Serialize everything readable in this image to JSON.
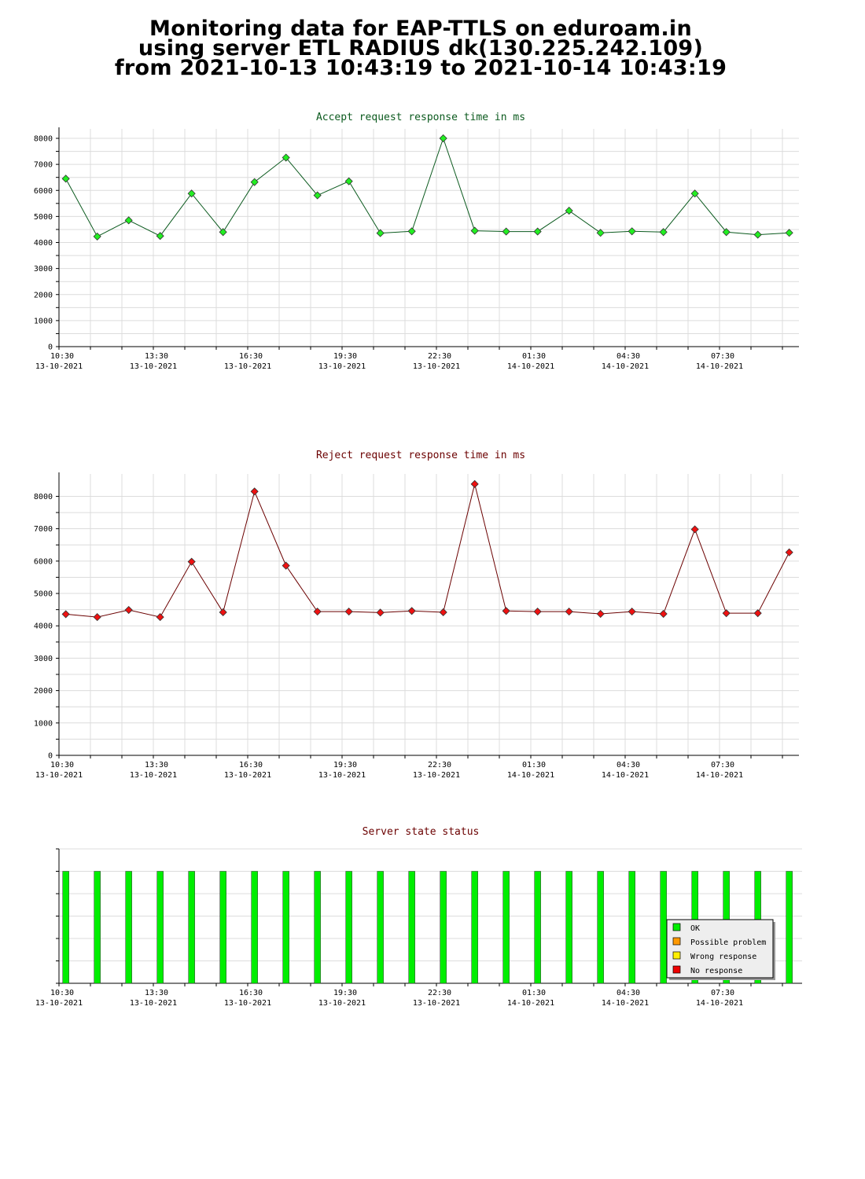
{
  "header": {
    "line1": "Monitoring data for EAP-TTLS on eduroam.in",
    "line2": "using server ETL RADIUS dk(130.225.242.109)",
    "line3": "from 2021-10-13 10:43:19 to 2021-10-14 10:43:19"
  },
  "colors": {
    "accept_line": "#0b5a1e",
    "accept_marker": "#22ee22",
    "reject_line": "#6b0000",
    "reject_marker": "#ee1111",
    "ok": "#00ee00",
    "possible_problem": "#ff9900",
    "wrong_response": "#ffee00",
    "no_response": "#ee0000",
    "grid": "#dcdcdc"
  },
  "x_axis": {
    "ticks": [
      {
        "time": "10:30",
        "date": "13-10-2021"
      },
      {
        "time": "13:30",
        "date": "13-10-2021"
      },
      {
        "time": "16:30",
        "date": "13-10-2021"
      },
      {
        "time": "19:30",
        "date": "13-10-2021"
      },
      {
        "time": "22:30",
        "date": "13-10-2021"
      },
      {
        "time": "01:30",
        "date": "14-10-2021"
      },
      {
        "time": "04:30",
        "date": "14-10-2021"
      },
      {
        "time": "07:30",
        "date": "14-10-2021"
      }
    ]
  },
  "chart_data": [
    {
      "type": "line",
      "title": "Accept request response time in ms",
      "xlabel": "",
      "ylabel": "",
      "ylim": [
        0,
        8000
      ],
      "yticks": [
        0,
        1000,
        2000,
        3000,
        4000,
        5000,
        6000,
        7000,
        8000
      ],
      "grid": true,
      "x": [
        "2021-10-13 10:43",
        "2021-10-13 11:43",
        "2021-10-13 12:43",
        "2021-10-13 13:43",
        "2021-10-13 14:43",
        "2021-10-13 15:43",
        "2021-10-13 16:43",
        "2021-10-13 17:43",
        "2021-10-13 18:43",
        "2021-10-13 19:43",
        "2021-10-13 20:43",
        "2021-10-13 21:43",
        "2021-10-13 22:43",
        "2021-10-13 23:43",
        "2021-10-14 00:43",
        "2021-10-14 01:43",
        "2021-10-14 02:43",
        "2021-10-14 03:43",
        "2021-10-14 04:43",
        "2021-10-14 05:43",
        "2021-10-14 06:43",
        "2021-10-14 07:43",
        "2021-10-14 08:43",
        "2021-10-14 09:43"
      ],
      "values": [
        6450,
        4230,
        4850,
        4250,
        5880,
        4400,
        6320,
        7260,
        5810,
        6350,
        4360,
        4430,
        8000,
        4450,
        4420,
        4420,
        5220,
        4370,
        4430,
        4400,
        5880,
        4400,
        4300,
        4370
      ]
    },
    {
      "type": "line",
      "title": "Reject request response time in ms",
      "xlabel": "",
      "ylabel": "",
      "ylim": [
        0,
        8400
      ],
      "yticks": [
        0,
        1000,
        2000,
        3000,
        4000,
        5000,
        6000,
        7000,
        8000
      ],
      "grid": true,
      "x": [
        "2021-10-13 10:43",
        "2021-10-13 11:43",
        "2021-10-13 12:43",
        "2021-10-13 13:43",
        "2021-10-13 14:43",
        "2021-10-13 15:43",
        "2021-10-13 16:43",
        "2021-10-13 17:43",
        "2021-10-13 18:43",
        "2021-10-13 19:43",
        "2021-10-13 20:43",
        "2021-10-13 21:43",
        "2021-10-13 22:43",
        "2021-10-13 23:43",
        "2021-10-14 00:43",
        "2021-10-14 01:43",
        "2021-10-14 02:43",
        "2021-10-14 03:43",
        "2021-10-14 04:43",
        "2021-10-14 05:43",
        "2021-10-14 06:43",
        "2021-10-14 07:43",
        "2021-10-14 08:43",
        "2021-10-14 09:43"
      ],
      "values": [
        4360,
        4270,
        4490,
        4270,
        5980,
        4420,
        8150,
        5860,
        4440,
        4440,
        4410,
        4460,
        4420,
        8380,
        4460,
        4440,
        4440,
        4370,
        4440,
        4370,
        6980,
        4390,
        4390,
        6270
      ]
    },
    {
      "type": "bar",
      "title": "Server state status",
      "xlabel": "",
      "ylabel": "",
      "ylim": [
        0,
        6
      ],
      "grid": true,
      "x": [
        "2021-10-13 10:43",
        "2021-10-13 11:43",
        "2021-10-13 12:43",
        "2021-10-13 13:43",
        "2021-10-13 14:43",
        "2021-10-13 15:43",
        "2021-10-13 16:43",
        "2021-10-13 17:43",
        "2021-10-13 18:43",
        "2021-10-13 19:43",
        "2021-10-13 20:43",
        "2021-10-13 21:43",
        "2021-10-13 22:43",
        "2021-10-13 23:43",
        "2021-10-14 00:43",
        "2021-10-14 01:43",
        "2021-10-14 02:43",
        "2021-10-14 03:43",
        "2021-10-14 04:43",
        "2021-10-14 05:43",
        "2021-10-14 06:43",
        "2021-10-14 07:43",
        "2021-10-14 08:43",
        "2021-10-14 09:43"
      ],
      "values": [
        5,
        5,
        5,
        5,
        5,
        5,
        5,
        5,
        5,
        5,
        5,
        5,
        5,
        5,
        5,
        5,
        5,
        5,
        5,
        5,
        5,
        5,
        5,
        5
      ],
      "status": [
        "OK",
        "OK",
        "OK",
        "OK",
        "OK",
        "OK",
        "OK",
        "OK",
        "OK",
        "OK",
        "OK",
        "OK",
        "OK",
        "OK",
        "OK",
        "OK",
        "OK",
        "OK",
        "OK",
        "OK",
        "OK",
        "OK",
        "OK",
        "OK"
      ],
      "legend_position": "bottom-right",
      "legend": [
        {
          "label": "OK",
          "color": "#00ee00"
        },
        {
          "label": "Possible problem",
          "color": "#ff9900"
        },
        {
          "label": "Wrong response",
          "color": "#ffee00"
        },
        {
          "label": "No response",
          "color": "#ee0000"
        }
      ]
    }
  ]
}
